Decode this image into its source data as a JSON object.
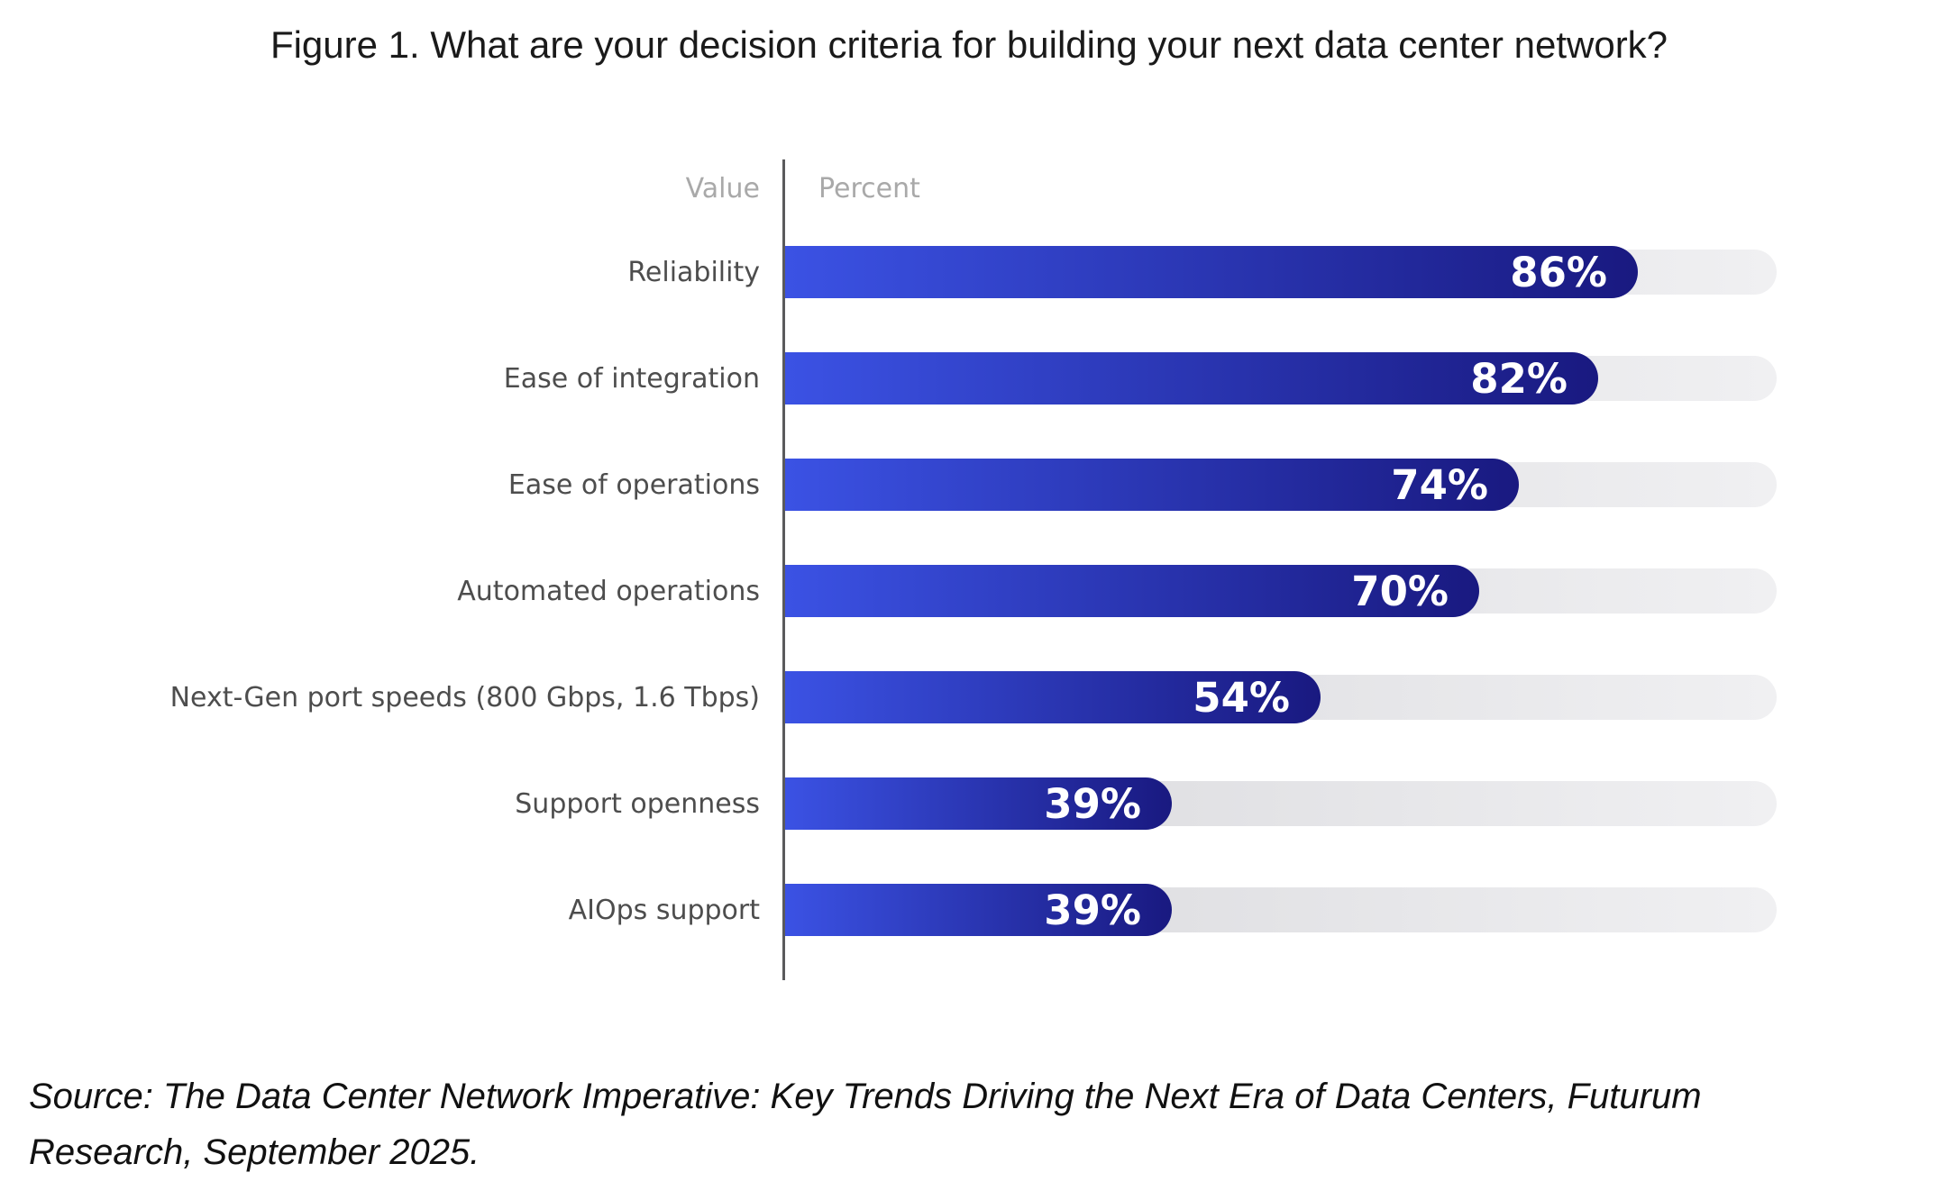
{
  "title": "Figure 1. What are your decision criteria for building your next data center network?",
  "axis": {
    "value_label": "Value",
    "percent_label": "Percent"
  },
  "chart_data": {
    "type": "bar",
    "orientation": "horizontal",
    "title": "Figure 1. What are your decision criteria for building your next data center network?",
    "categories": [
      "Reliability",
      "Ease of integration",
      "Ease of operations",
      "Automated operations",
      "Next-Gen port speeds (800 Gbps, 1.6 Tbps)",
      "Support openness",
      "AIOps support"
    ],
    "values": [
      86,
      82,
      74,
      70,
      54,
      39,
      39
    ],
    "unit": "%",
    "xlabel": "Percent",
    "ylabel": "Value",
    "xlim": [
      0,
      100
    ],
    "grid": false,
    "legend": false,
    "value_labels": [
      "86%",
      "82%",
      "74%",
      "70%",
      "54%",
      "39%",
      "39%"
    ],
    "value_label_position": "inside-end"
  },
  "source": {
    "lines": [
      "Source: The Data Center Network Imperative: Key Trends Driving the Next Era of Data Centers, Futurum",
      "Research, September 2025."
    ]
  },
  "colors": {
    "bar_gradient_start": "#3b52e4",
    "bar_gradient_end": "#191980",
    "track_gradient_start": "#d7d7db",
    "track_gradient_end": "#f0f0f2",
    "axis_line": "#5a5a5c",
    "axis_header_text": "#a9a9a9",
    "category_label": "#4d4d4d",
    "value_text": "#ffffff",
    "title_text": "#1a1a1a",
    "source_text": "#111111"
  }
}
